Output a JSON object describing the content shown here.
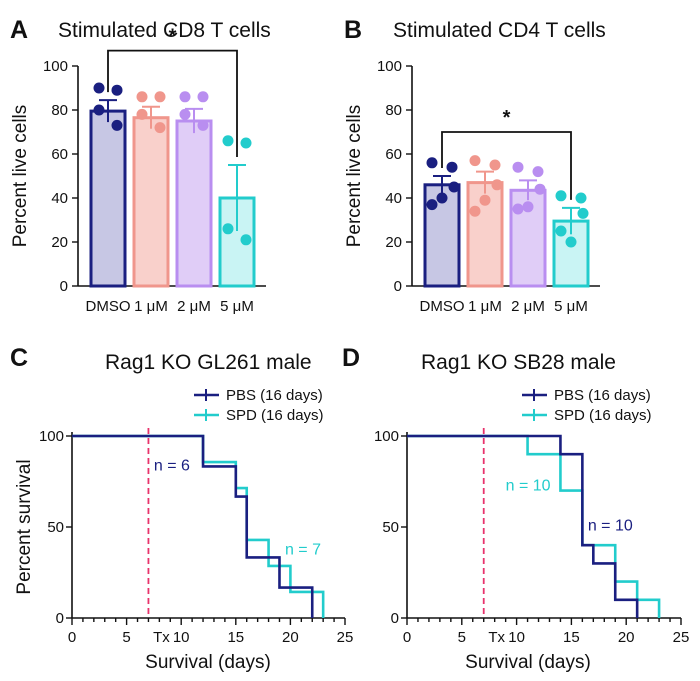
{
  "chart_data": [
    {
      "panel": "A",
      "type": "bar",
      "title": "Stimulated CD8 T cells",
      "ylabel": "Percent live cells",
      "xlabel": "",
      "categories": [
        "DMSO",
        "1 μM",
        "2 μM",
        "5 μM"
      ],
      "values": [
        79.5,
        76.5,
        75,
        40
      ],
      "errors": [
        5,
        5,
        5.5,
        15
      ],
      "points": [
        [
          90,
          89,
          80,
          73
        ],
        [
          86,
          86,
          78,
          72
        ],
        [
          86,
          86,
          78,
          73
        ],
        [
          66,
          65,
          26,
          21
        ]
      ],
      "ylim": [
        0,
        100
      ],
      "yticks": [
        0,
        20,
        40,
        60,
        80,
        100
      ],
      "colors": {
        "fill": [
          "#c7c7e4",
          "#f9d0cb",
          "#e0cdf7",
          "#c9f4f4"
        ],
        "edge": [
          "#1a1f80",
          "#f0968c",
          "#b98ef0",
          "#22cccc"
        ]
      },
      "significance": {
        "from": 0,
        "to": 3,
        "label": "*",
        "level": 107
      }
    },
    {
      "panel": "B",
      "type": "bar",
      "title": "Stimulated CD4 T cells",
      "ylabel": "Percent live cells",
      "xlabel": "",
      "categories": [
        "DMSO",
        "1 μM",
        "2 μM",
        "5 μM"
      ],
      "values": [
        46,
        47,
        43.5,
        29.5
      ],
      "errors": [
        4,
        5,
        4.5,
        6
      ],
      "points": [
        [
          56,
          54,
          45,
          37,
          40
        ],
        [
          57,
          55,
          46,
          34,
          39
        ],
        [
          54,
          52,
          44,
          35,
          36
        ],
        [
          41,
          40,
          33,
          25,
          20
        ]
      ],
      "ylim": [
        0,
        100
      ],
      "yticks": [
        0,
        20,
        40,
        60,
        80,
        100
      ],
      "colors": {
        "fill": [
          "#c7c7e4",
          "#f9d0cb",
          "#e0cdf7",
          "#c9f4f4"
        ],
        "edge": [
          "#1a1f80",
          "#f0968c",
          "#b98ef0",
          "#22cccc"
        ]
      },
      "significance": {
        "from": 0,
        "to": 3,
        "label": "*",
        "level": 70
      }
    },
    {
      "panel": "C",
      "type": "line",
      "title": "Rag1 KO GL261 male",
      "ylabel": "Percent survival",
      "xlabel": "Survival (days)",
      "xlim": [
        0,
        25
      ],
      "ylim": [
        0,
        100
      ],
      "xticks": [
        0,
        5,
        10,
        15,
        20,
        25
      ],
      "yticks": [
        0,
        50,
        100
      ],
      "treatment": {
        "day": 7,
        "label": "Tx"
      },
      "series": [
        {
          "name": "PBS (16 days)",
          "color": "#1a1f80",
          "x": [
            0,
            12,
            14,
            15,
            16,
            19,
            22
          ],
          "y": [
            100,
            83.3,
            83.3,
            66.7,
            33.3,
            16.7,
            0
          ],
          "n_label": "n = 6",
          "n_at": [
            7.5,
            81
          ]
        },
        {
          "name": "SPD (16 days)",
          "color": "#22cccc",
          "x": [
            0,
            12,
            14,
            15,
            16,
            17,
            18,
            20,
            23
          ],
          "y": [
            100,
            85.7,
            85.7,
            71.4,
            42.9,
            42.9,
            28.6,
            14.3,
            0
          ],
          "n_label": "n = 7",
          "n_at": [
            19.5,
            35
          ]
        }
      ]
    },
    {
      "panel": "D",
      "type": "line",
      "title": "Rag1 KO SB28 male",
      "ylabel": "Percent survival",
      "xlabel": "Survival (days)",
      "xlim": [
        0,
        25
      ],
      "ylim": [
        0,
        100
      ],
      "xticks": [
        0,
        5,
        10,
        15,
        20,
        25
      ],
      "yticks": [
        0,
        50,
        100
      ],
      "treatment": {
        "day": 7,
        "label": "Tx"
      },
      "series": [
        {
          "name": "PBS (16 days)",
          "color": "#1a1f80",
          "x": [
            0,
            14,
            16,
            17,
            19,
            21
          ],
          "y": [
            100,
            90,
            40,
            30,
            10,
            0
          ],
          "n_label": "n = 10",
          "n_at": [
            16.5,
            48
          ]
        },
        {
          "name": "SPD (16 days)",
          "color": "#22cccc",
          "x": [
            0,
            11,
            14,
            16,
            17,
            19,
            20,
            21,
            23
          ],
          "y": [
            100,
            90,
            70,
            40,
            40,
            20,
            20,
            10,
            0
          ],
          "n_label": "n = 10",
          "n_at": [
            9,
            70
          ]
        }
      ]
    }
  ],
  "tx_color": "#e8336c",
  "mu_symbol": "μ"
}
